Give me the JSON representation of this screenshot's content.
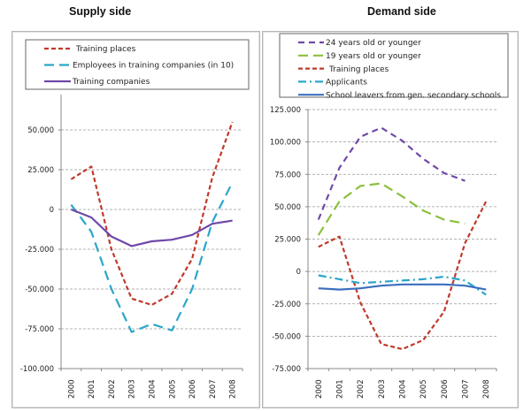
{
  "titles": {
    "left": "Supply side",
    "right": "Demand side"
  },
  "chart_data": [
    {
      "type": "line",
      "title": "Supply side",
      "xlabel": "",
      "ylabel": "",
      "categories": [
        "2000",
        "2001",
        "2002",
        "2003",
        "2004",
        "2005",
        "2006",
        "2007",
        "2008"
      ],
      "ylim": [
        -100000,
        50000
      ],
      "y_ticks": [
        50000,
        25000,
        0,
        -25000,
        -50000,
        -75000,
        -100000
      ],
      "y_tick_labels": [
        "50.000",
        "25.000",
        "0",
        "-25.000",
        "-50.000",
        "-75.000",
        "-100.000"
      ],
      "grid": true,
      "legend_position": "top",
      "series": [
        {
          "name": "Training places",
          "color": "#c0392b",
          "style": "short-dash",
          "values": [
            19000,
            27000,
            -25000,
            -56000,
            -60000,
            -53000,
            -31000,
            20000,
            55000
          ]
        },
        {
          "name": "Employees in training companies (in 10)",
          "color": "#2aa6c9",
          "style": "long-dash",
          "values": [
            3000,
            -14000,
            -50000,
            -77000,
            -72000,
            -76000,
            -50000,
            -8000,
            17000
          ]
        },
        {
          "name": "Training companies",
          "color": "#7048a8",
          "style": "solid",
          "values": [
            0,
            -5000,
            -17000,
            -23000,
            -20000,
            -19000,
            -16000,
            -9000,
            -7000
          ]
        }
      ]
    },
    {
      "type": "line",
      "title": "Demand side",
      "xlabel": "",
      "ylabel": "",
      "categories": [
        "2000",
        "2001",
        "2002",
        "2003",
        "2004",
        "2005",
        "2006",
        "2007",
        "2008"
      ],
      "ylim": [
        -75000,
        125000
      ],
      "y_ticks": [
        125000,
        100000,
        75000,
        50000,
        25000,
        0,
        -25000,
        -50000,
        -75000
      ],
      "y_tick_labels": [
        "125.000",
        "100.000",
        "75.000",
        "50.000",
        "25.000",
        "0",
        "-25.000",
        "-50.000",
        "-75.000"
      ],
      "grid": true,
      "legend_position": "top",
      "series": [
        {
          "name": "24 years old or younger",
          "color": "#7048a8",
          "style": "medium-dash",
          "values": [
            40000,
            80000,
            104000,
            111000,
            101000,
            87000,
            76000,
            70000,
            null
          ]
        },
        {
          "name": "19 years old or younger",
          "color": "#8cbf3f",
          "style": "long-dash",
          "values": [
            28000,
            54000,
            66000,
            68000,
            58000,
            47000,
            40000,
            37000,
            null
          ]
        },
        {
          "name": "Training places",
          "color": "#c0392b",
          "style": "short-dash",
          "values": [
            19000,
            27000,
            -24000,
            -56000,
            -60000,
            -53000,
            -31000,
            22000,
            54000
          ]
        },
        {
          "name": "Applicants",
          "color": "#2aa6c9",
          "style": "dash-dot",
          "values": [
            -3000,
            -6000,
            -9000,
            -8000,
            -7000,
            -6000,
            -4000,
            -7000,
            -18000
          ]
        },
        {
          "name": "School leavers from gen. secondary schools",
          "color": "#3a6fbf",
          "style": "solid",
          "values": [
            -13000,
            -14000,
            -13000,
            -11000,
            -10000,
            -10000,
            -10000,
            -11000,
            -14000
          ]
        }
      ]
    }
  ]
}
